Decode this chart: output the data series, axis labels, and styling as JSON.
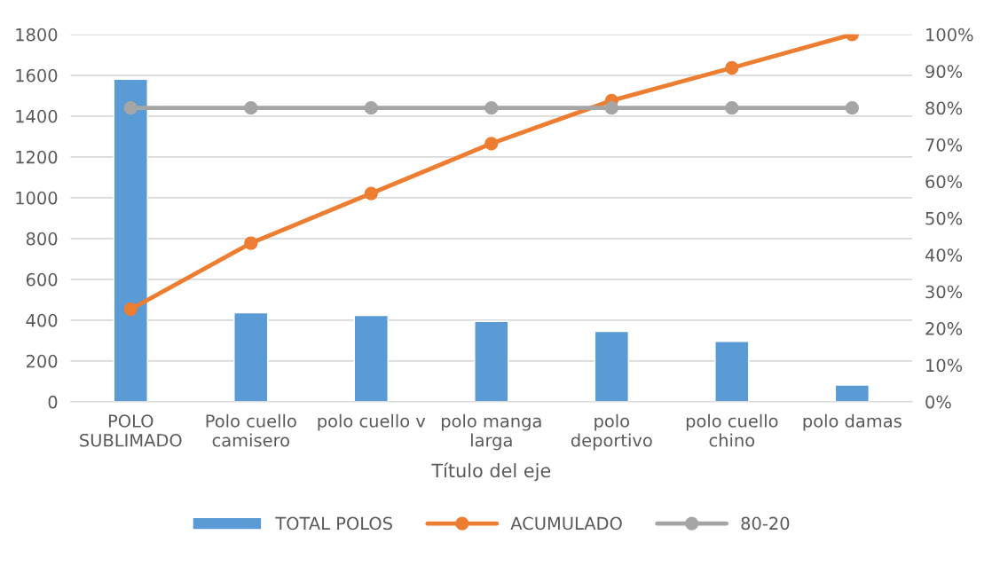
{
  "chart_data": {
    "type": "bar",
    "categories": [
      "POLO\nSUBLIMADO",
      "Polo cuello\ncamisero",
      "polo cuello v",
      "polo manga\nlarga",
      "polo\ndeportivo",
      "polo cuello\nchino",
      "polo damas"
    ],
    "series": [
      {
        "name": "TOTAL POLOS",
        "color": "#5b9bd5",
        "values": [
          1580,
          436,
          423,
          394,
          345,
          296,
          82
        ]
      },
      {
        "name": "ACUMULADO",
        "type": "line",
        "axis": "y2",
        "color": "#ed7d31",
        "marker": "circle",
        "values": [
          25.2,
          43.2,
          56.7,
          70.3,
          82.0,
          90.9,
          100
        ]
      },
      {
        "name": "80-20",
        "type": "line",
        "axis": "y2",
        "color": "#a5a5a5",
        "marker": "circle",
        "values": [
          80,
          80,
          80,
          80,
          80,
          80,
          80
        ]
      }
    ],
    "xlabel": "Título del eje",
    "ylim": [
      0,
      1800
    ],
    "yticks": [
      0,
      200,
      400,
      600,
      800,
      1000,
      1200,
      1400,
      1600,
      1800
    ],
    "y2lim": [
      0,
      100
    ],
    "y2ticks": [
      {
        "value": 0,
        "label": "0%"
      },
      {
        "value": 10,
        "label": "10%"
      },
      {
        "value": 20,
        "label": "20%"
      },
      {
        "value": 30,
        "label": "30%"
      },
      {
        "value": 40,
        "label": "40%"
      },
      {
        "value": 50,
        "label": "50%"
      },
      {
        "value": 60,
        "label": "60%"
      },
      {
        "value": 70,
        "label": "70%"
      },
      {
        "value": 80,
        "label": "80%"
      },
      {
        "value": 90,
        "label": "90%"
      },
      {
        "value": 100,
        "label": "100%"
      }
    ],
    "grid": "y",
    "legend": "bottom"
  }
}
